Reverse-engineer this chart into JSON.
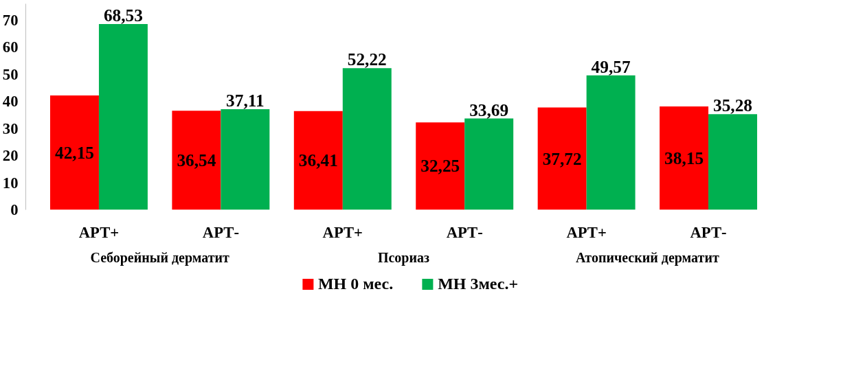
{
  "chart_data": {
    "type": "bar",
    "categories": [
      "АРТ+",
      "АРТ-",
      "АРТ+",
      "АРТ-",
      "АРТ+",
      "АРТ-"
    ],
    "series": [
      {
        "name": "МН 0 мес.",
        "color": "#ff0000",
        "values": [
          42.15,
          36.54,
          36.41,
          32.25,
          37.72,
          38.15
        ],
        "value_labels": [
          "42,15",
          "36,54",
          "36,41",
          "32,25",
          "37,72",
          "38,15"
        ]
      },
      {
        "name": "МН 3мес.+",
        "color": "#00b050",
        "values": [
          68.53,
          37.11,
          52.22,
          33.69,
          49.57,
          35.28
        ],
        "value_labels": [
          "68,53",
          "37,11",
          "52,22",
          "33,69",
          "49,57",
          "35,28"
        ]
      }
    ],
    "annotations": [
      "Себорейный дерматит",
      "Псориаз",
      "Атопический дерматит"
    ],
    "ylim": [
      0,
      76
    ],
    "yticks": [
      0,
      10,
      20,
      30,
      40,
      50,
      60,
      70
    ],
    "grid": false,
    "legend": "bottom"
  }
}
